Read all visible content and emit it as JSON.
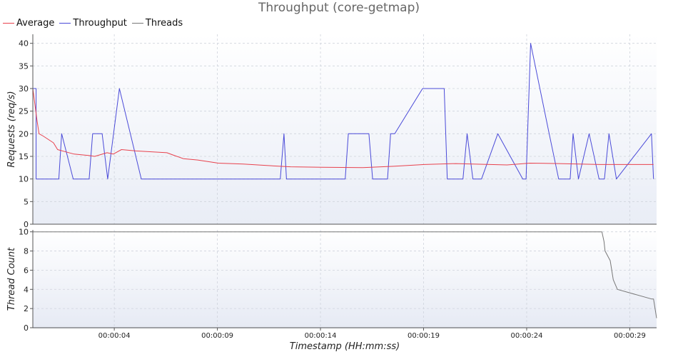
{
  "chart_data": [
    {
      "type": "line",
      "title": "Throughput (core-getmap)",
      "legend": {
        "placement": "top-left",
        "entries": [
          "Average",
          "Throughput",
          "Threads"
        ]
      },
      "colors": {
        "Average": "#e8424d",
        "Throughput": "#4a4ad8",
        "Threads": "#777777"
      },
      "ylabel": "Requests (req/s)",
      "ylim": [
        0,
        42
      ],
      "yticks": [
        0,
        5,
        10,
        15,
        20,
        25,
        30,
        35,
        40
      ],
      "xlim_seconds": [
        0,
        30.25
      ],
      "grid": true,
      "series": [
        {
          "name": "Throughput",
          "x": [
            0.0,
            0.16,
            0.16,
            1.26,
            1.4,
            1.96,
            2.73,
            2.9,
            3.36,
            3.63,
            4.2,
            5.26,
            12.0,
            12.18,
            12.3,
            15.15,
            15.3,
            16.3,
            16.48,
            17.2,
            17.35,
            17.55,
            18.9,
            19.95,
            20.1,
            20.86,
            21.06,
            21.34,
            21.76,
            22.55,
            23.76,
            23.92,
            24.14,
            25.04,
            25.5,
            26.06,
            26.2,
            26.46,
            26.98,
            27.46,
            27.72,
            27.94,
            28.3,
            30.0,
            30.1
          ],
          "y": [
            30,
            30,
            10,
            10,
            20,
            10,
            10,
            20,
            20,
            10,
            30,
            10,
            10,
            20,
            10,
            10,
            20,
            20,
            10,
            10,
            20,
            20,
            30,
            30,
            10,
            10,
            20,
            10,
            10,
            20,
            10,
            10,
            40,
            20,
            10,
            10,
            20,
            10,
            20,
            10,
            10,
            20,
            10,
            20,
            10
          ]
        },
        {
          "name": "Average",
          "x": [
            0.0,
            0.2,
            0.3,
            0.5,
            1.0,
            1.2,
            1.6,
            2.0,
            2.7,
            3.0,
            3.6,
            3.9,
            4.3,
            5.0,
            6.5,
            6.8,
            7.3,
            8.0,
            9.0,
            10.2,
            12.0,
            12.5,
            14.0,
            16.0,
            17.5,
            19.0,
            20.5,
            23.0,
            24.1,
            25.5,
            27.5,
            30.1
          ],
          "y": [
            30,
            23,
            20,
            19.5,
            18,
            16.5,
            16,
            15.5,
            15.2,
            15,
            15.8,
            15.5,
            16.5,
            16.2,
            15.8,
            15.3,
            14.5,
            14.2,
            13.5,
            13.3,
            12.8,
            12.7,
            12.6,
            12.5,
            12.8,
            13.2,
            13.4,
            13.1,
            13.5,
            13.4,
            13.2,
            13.2
          ]
        }
      ]
    },
    {
      "type": "line",
      "ylabel": "Thread Count",
      "ylim": [
        0,
        10.2
      ],
      "yticks": [
        0,
        2,
        4,
        6,
        8,
        10
      ],
      "xlabel": "Timestamp (HH:mm:ss)",
      "xticks": [
        {
          "seconds": 3.95,
          "label": "00:00:04"
        },
        {
          "seconds": 8.95,
          "label": "00:00:09"
        },
        {
          "seconds": 13.95,
          "label": "00:00:14"
        },
        {
          "seconds": 18.95,
          "label": "00:00:19"
        },
        {
          "seconds": 23.95,
          "label": "00:00:24"
        },
        {
          "seconds": 28.95,
          "label": "00:00:29"
        }
      ],
      "xlim_seconds": [
        0,
        30.25
      ],
      "grid": true,
      "series": [
        {
          "name": "Threads",
          "x": [
            0.0,
            27.6,
            27.7,
            27.75,
            28.0,
            28.15,
            28.35,
            30.0,
            30.1,
            30.25
          ],
          "y": [
            10,
            10,
            9,
            8,
            7,
            5,
            4,
            3,
            3,
            1
          ]
        }
      ]
    }
  ]
}
